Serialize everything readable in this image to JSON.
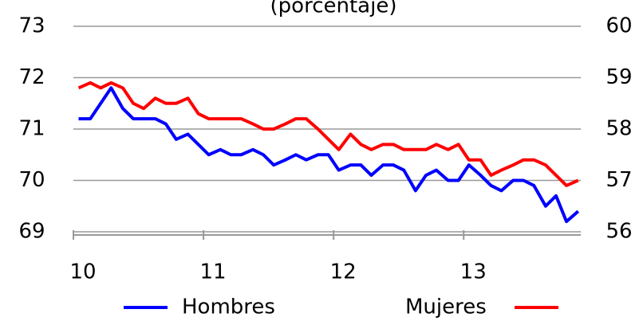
{
  "chart_data": {
    "type": "line",
    "subtitle": "(porcentaje)",
    "x": [
      10.04,
      10.13,
      10.21,
      10.29,
      10.38,
      10.46,
      10.54,
      10.63,
      10.71,
      10.79,
      10.88,
      10.96,
      11.04,
      11.13,
      11.21,
      11.29,
      11.38,
      11.46,
      11.54,
      11.63,
      11.71,
      11.79,
      11.88,
      11.96,
      12.04,
      12.13,
      12.21,
      12.29,
      12.38,
      12.46,
      12.54,
      12.63,
      12.71,
      12.79,
      12.88,
      12.96,
      13.04,
      13.13,
      13.21,
      13.29,
      13.38,
      13.46,
      13.54,
      13.63,
      13.71,
      13.79,
      13.88
    ],
    "xlim": [
      10,
      13.9
    ],
    "xticks": [
      10,
      11,
      12,
      13
    ],
    "ylim": [
      69,
      73
    ],
    "yticks": [
      69,
      70,
      71,
      72,
      73
    ],
    "y2lim": [
      56,
      60
    ],
    "y2ticks": [
      56,
      57,
      58,
      59,
      60
    ],
    "grid": true,
    "series": [
      {
        "name": "Hombres",
        "color": "#0000ff",
        "axis": "y",
        "values": [
          71.2,
          71.2,
          71.5,
          71.8,
          71.4,
          71.2,
          71.2,
          71.2,
          71.1,
          70.8,
          70.9,
          70.7,
          70.5,
          70.6,
          70.5,
          70.5,
          70.6,
          70.5,
          70.3,
          70.4,
          70.5,
          70.4,
          70.5,
          70.5,
          70.2,
          70.3,
          70.3,
          70.1,
          70.3,
          70.3,
          70.2,
          69.8,
          70.1,
          70.2,
          70.0,
          70.0,
          70.3,
          70.1,
          69.9,
          69.8,
          70.0,
          70.0,
          69.9,
          69.5,
          69.7,
          69.2,
          69.4
        ]
      },
      {
        "name": "Mujeres",
        "color": "#ff0000",
        "axis": "y2",
        "values": [
          58.8,
          58.9,
          58.8,
          58.9,
          58.8,
          58.5,
          58.4,
          58.6,
          58.5,
          58.5,
          58.6,
          58.3,
          58.2,
          58.2,
          58.2,
          58.2,
          58.1,
          58.0,
          58.0,
          58.1,
          58.2,
          58.2,
          58.0,
          57.8,
          57.6,
          57.9,
          57.7,
          57.6,
          57.7,
          57.7,
          57.6,
          57.6,
          57.6,
          57.7,
          57.6,
          57.7,
          57.4,
          57.4,
          57.1,
          57.2,
          57.3,
          57.4,
          57.4,
          57.3,
          57.1,
          56.9,
          57.0
        ]
      }
    ]
  }
}
